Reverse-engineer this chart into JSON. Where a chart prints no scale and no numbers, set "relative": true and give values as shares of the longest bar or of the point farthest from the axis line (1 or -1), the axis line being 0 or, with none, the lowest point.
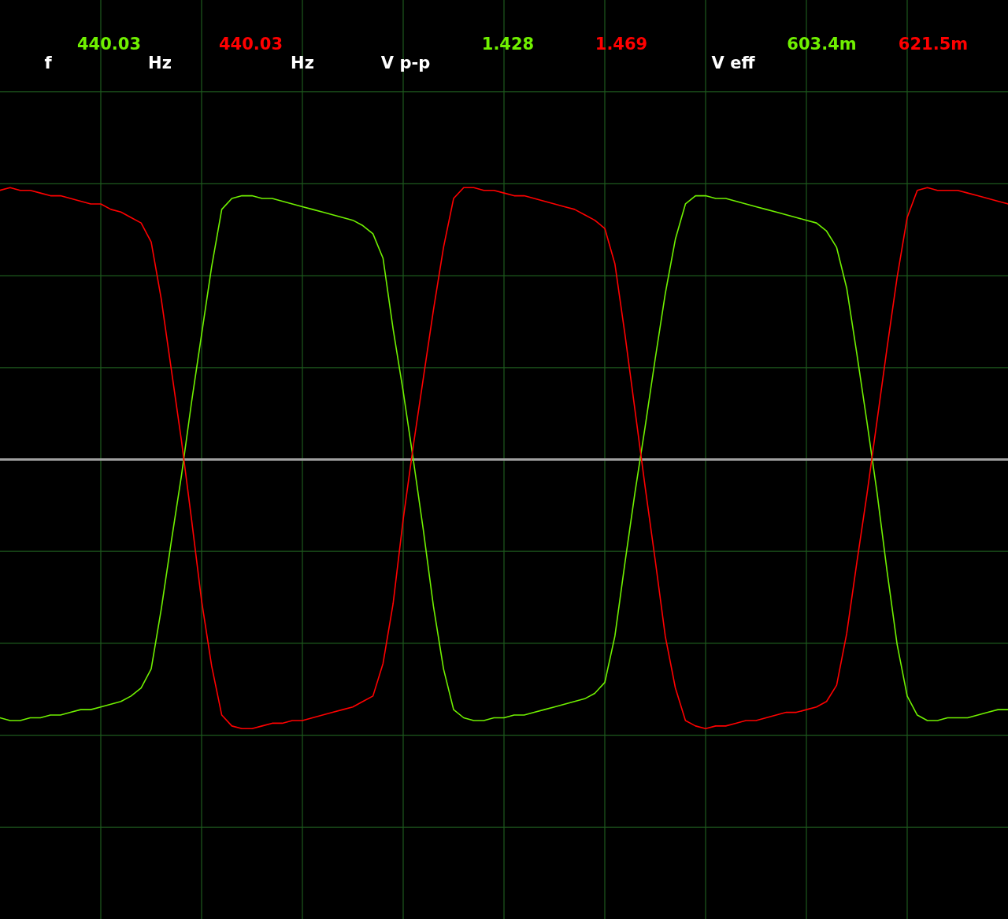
{
  "chart_data": {
    "type": "line",
    "relative": true,
    "grid": true,
    "categories": [
      null,
      null,
      null,
      null,
      null,
      null,
      null,
      null,
      null,
      null,
      null,
      null,
      null,
      null,
      null,
      null,
      null,
      null,
      null,
      null,
      null,
      null,
      null,
      null,
      null,
      null,
      null,
      null,
      null,
      null,
      null,
      null,
      null,
      null,
      null,
      null,
      null,
      null,
      null,
      null,
      null,
      null,
      null,
      null,
      null,
      null,
      null,
      null,
      null,
      null,
      null,
      null,
      null,
      null,
      null,
      null,
      null,
      null,
      null,
      null,
      null,
      null,
      null,
      null,
      null,
      null,
      null,
      null,
      null,
      null,
      null,
      null,
      null,
      null,
      null,
      null,
      null,
      null,
      null,
      null,
      null,
      null,
      null,
      null,
      null,
      null,
      null,
      null,
      null,
      null,
      null,
      null,
      null,
      null,
      null,
      null,
      null,
      null,
      null,
      null,
      null
    ],
    "series": [
      {
        "color": "#70f000",
        "values": [
          -0.95,
          -0.96,
          -0.96,
          -0.95,
          -0.95,
          -0.94,
          -0.94,
          -0.93,
          -0.92,
          -0.92,
          -0.91,
          -0.9,
          -0.89,
          -0.87,
          -0.84,
          -0.77,
          -0.55,
          -0.3,
          -0.06,
          0.21,
          0.46,
          0.71,
          0.92,
          0.96,
          0.97,
          0.97,
          0.96,
          0.96,
          0.95,
          0.94,
          0.93,
          0.92,
          0.91,
          0.9,
          0.89,
          0.88,
          0.86,
          0.83,
          0.74,
          0.48,
          0.25,
          0.0,
          -0.26,
          -0.54,
          -0.77,
          -0.92,
          -0.95,
          -0.96,
          -0.96,
          -0.95,
          -0.95,
          -0.94,
          -0.94,
          -0.93,
          -0.92,
          -0.91,
          -0.9,
          -0.89,
          -0.88,
          -0.86,
          -0.82,
          -0.65,
          -0.38,
          -0.12,
          0.12,
          0.37,
          0.61,
          0.81,
          0.94,
          0.97,
          0.97,
          0.96,
          0.96,
          0.95,
          0.94,
          0.93,
          0.92,
          0.91,
          0.9,
          0.89,
          0.88,
          0.87,
          0.84,
          0.78,
          0.63,
          0.39,
          0.14,
          -0.12,
          -0.41,
          -0.68,
          -0.87,
          -0.94,
          -0.96,
          -0.96,
          -0.95,
          -0.95,
          -0.95,
          -0.94,
          -0.93,
          -0.92,
          -0.92
        ]
      },
      {
        "color": "#ff0000",
        "values": [
          0.99,
          1.0,
          0.99,
          0.99,
          0.98,
          0.97,
          0.97,
          0.96,
          0.95,
          0.94,
          0.94,
          0.92,
          0.91,
          0.89,
          0.87,
          0.8,
          0.59,
          0.33,
          0.07,
          -0.22,
          -0.52,
          -0.76,
          -0.94,
          -0.98,
          -0.99,
          -0.99,
          -0.98,
          -0.97,
          -0.97,
          -0.96,
          -0.96,
          -0.95,
          -0.94,
          -0.93,
          -0.92,
          -0.91,
          -0.89,
          -0.87,
          -0.75,
          -0.53,
          -0.22,
          0.05,
          0.3,
          0.55,
          0.78,
          0.96,
          1.0,
          1.0,
          0.99,
          0.99,
          0.98,
          0.97,
          0.97,
          0.96,
          0.95,
          0.94,
          0.93,
          0.92,
          0.9,
          0.88,
          0.85,
          0.72,
          0.46,
          0.18,
          -0.1,
          -0.37,
          -0.65,
          -0.84,
          -0.96,
          -0.98,
          -0.99,
          -0.98,
          -0.98,
          -0.97,
          -0.96,
          -0.96,
          -0.95,
          -0.94,
          -0.93,
          -0.93,
          -0.92,
          -0.91,
          -0.89,
          -0.83,
          -0.64,
          -0.38,
          -0.13,
          0.14,
          0.41,
          0.67,
          0.89,
          0.99,
          1.0,
          0.99,
          0.99,
          0.99,
          0.98,
          0.97,
          0.96,
          0.95,
          0.94
        ]
      }
    ],
    "annotations": [
      "f",
      "440.03",
      "Hz",
      "440.03",
      "Hz",
      "V p-p",
      "1.428",
      "1.469",
      "V eff",
      "603.4m",
      "621.5m"
    ]
  }
}
